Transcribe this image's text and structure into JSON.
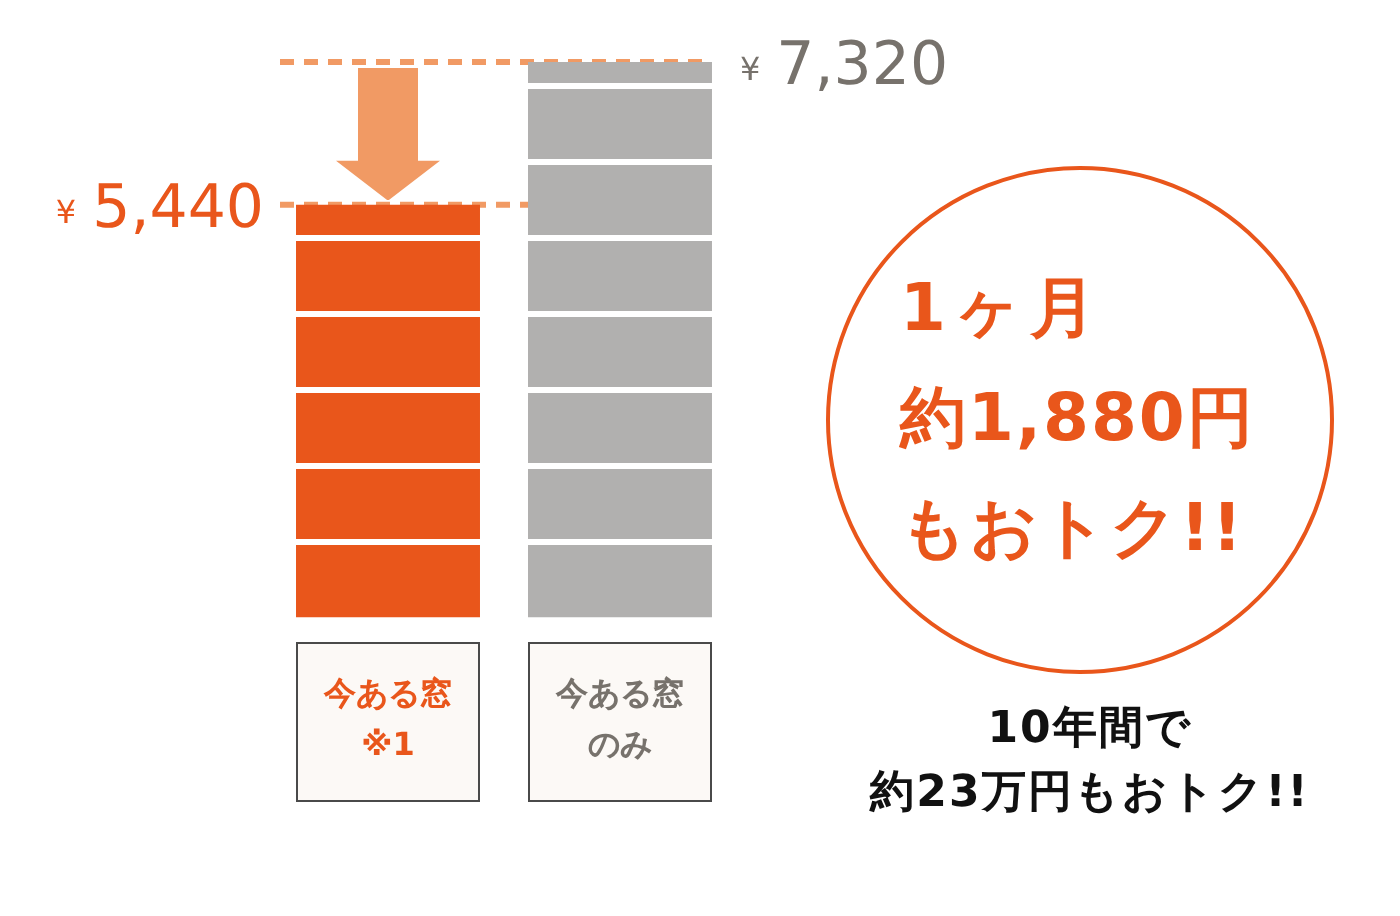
{
  "chart_data": {
    "type": "bar",
    "categories": [
      "今ある窓※1",
      "今ある窓のみ"
    ],
    "values": [
      5440,
      7320
    ],
    "colors": [
      "#e9561b",
      "#b1b0af"
    ],
    "ylim": [
      0,
      7320
    ],
    "yticks": [
      {
        "value": 1000,
        "label": null
      },
      {
        "value": 2000,
        "label": null
      },
      {
        "value": 3000,
        "label": null
      },
      {
        "value": 4000,
        "label": null
      },
      {
        "value": 5000,
        "label": null
      },
      {
        "value": 6000,
        "label": null
      },
      {
        "value": 7000,
        "label": null
      }
    ],
    "grid": "y",
    "tick_labels": "x",
    "legend": false,
    "ref_lines": [
      {
        "axis": "y",
        "value": 5440,
        "label": "¥ 5,440",
        "color": "#f19a64",
        "line_style": "dashed"
      },
      {
        "axis": "y",
        "value": 7320,
        "label": "¥ 7,320",
        "color": "#f19a64",
        "line_style": "dashed"
      }
    ],
    "annotations": [
      "1ヶ月",
      "約1,880円",
      "もおトク!!",
      "10年間で",
      "約23万円もおトク!!"
    ]
  }
}
